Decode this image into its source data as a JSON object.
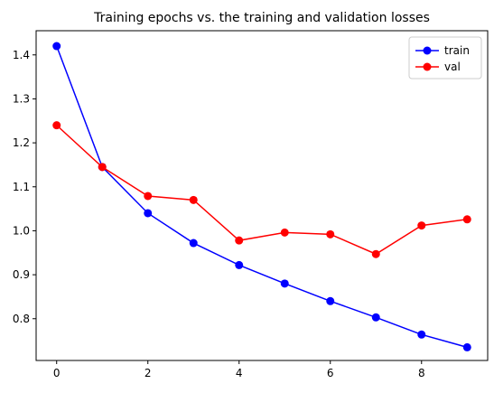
{
  "chart_data": {
    "type": "line",
    "title": "Training epochs vs. the training and validation losses",
    "xlabel": "",
    "ylabel": "",
    "x": [
      0,
      1,
      2,
      3,
      4,
      5,
      6,
      7,
      8,
      9
    ],
    "xlim": [
      -0.45,
      9.45
    ],
    "ylim": [
      0.705,
      1.455
    ],
    "xticks": [
      0,
      2,
      4,
      6,
      8
    ],
    "xtick_labels": [
      "0",
      "2",
      "4",
      "6",
      "8"
    ],
    "yticks": [
      0.8,
      0.9,
      1.0,
      1.1,
      1.2,
      1.3,
      1.4
    ],
    "ytick_labels": [
      "0.8",
      "0.9",
      "1.0",
      "1.1",
      "1.2",
      "1.3",
      "1.4"
    ],
    "grid": false,
    "legend_position": "top-right",
    "series": [
      {
        "name": "train",
        "color": "#0000ff",
        "marker": "circle",
        "values": [
          1.42,
          1.145,
          1.04,
          0.972,
          0.922,
          0.88,
          0.84,
          0.803,
          0.764,
          0.735
        ]
      },
      {
        "name": "val",
        "color": "#ff0000",
        "marker": "circle",
        "values": [
          1.24,
          1.145,
          1.079,
          1.07,
          0.978,
          0.996,
          0.992,
          0.947,
          1.012,
          1.026
        ]
      }
    ]
  }
}
